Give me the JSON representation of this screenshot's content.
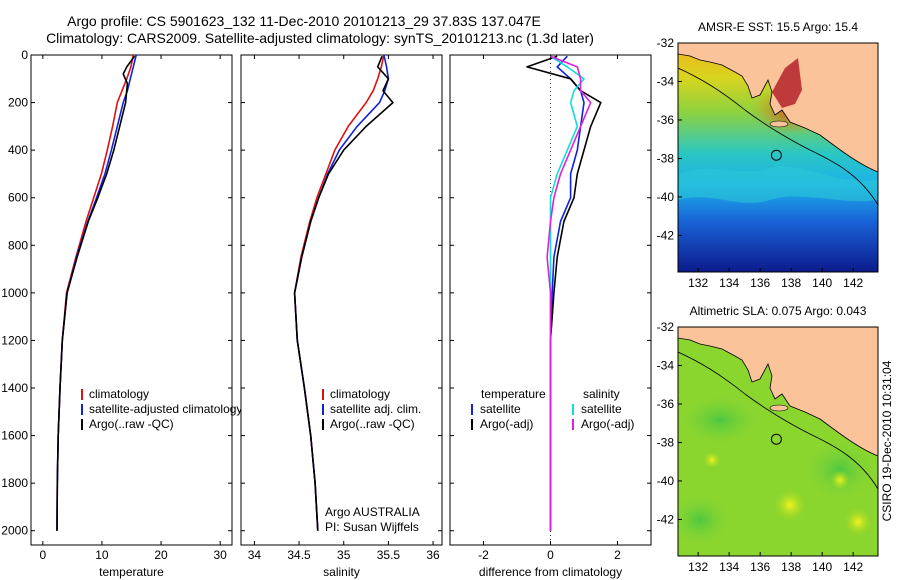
{
  "header": {
    "line1": "Argo profile: CS 5901623_132 11-Dec-2010 20101213_29 37.83S 137.047E",
    "line2": "Climatology: CARS2009. Satellite-adjusted climatology: synTS_20101213.nc (1.3d later)"
  },
  "footer": {
    "stamp": "CSIRO 19-Dec-2010 10:31:04"
  },
  "colors": {
    "red": "#dd1111",
    "blue": "#1122dd",
    "black": "#000000",
    "cyan": "#11dddd",
    "magenta": "#dd22dd",
    "land": "#fbc39a"
  },
  "chart_data": [
    {
      "type": "line",
      "xlabel": "temperature",
      "ylabel": "",
      "xlim": [
        -2,
        32
      ],
      "ylim": [
        2060,
        0
      ],
      "xticks": [
        0,
        10,
        20,
        30
      ],
      "xtick_labels": [
        "0",
        "10",
        "20",
        "30"
      ],
      "yticks": [
        0,
        200,
        400,
        600,
        800,
        1000,
        1200,
        1400,
        1600,
        1800,
        2000
      ],
      "ytick_labels": [
        "0",
        "200",
        "400",
        "600",
        "800",
        "1000",
        "1200",
        "1400",
        "1600",
        "1800",
        "2000"
      ],
      "legend": {
        "placement": "lower-right",
        "entries": [
          "climatology",
          "satellite-adjusted climatology",
          "Argo(..raw -QC)"
        ]
      },
      "series": [
        {
          "name": "climatology",
          "color": "red",
          "x": [
            15.3,
            14.9,
            14.2,
            13.4,
            12.6,
            11.8,
            10.9,
            9.9,
            8.6,
            7.3,
            5.6,
            4.0,
            3.3,
            2.9,
            2.6,
            2.45,
            2.4
          ],
          "y": [
            0,
            50,
            100,
            150,
            200,
            300,
            400,
            500,
            600,
            700,
            850,
            1000,
            1200,
            1400,
            1600,
            1800,
            2000
          ]
        },
        {
          "name": "satellite-adjusted climatology",
          "color": "blue",
          "x": [
            15.8,
            15.3,
            14.8,
            14.3,
            13.6,
            12.6,
            11.6,
            10.5,
            9.1,
            7.6,
            5.7,
            4.1,
            3.3,
            2.9,
            2.6,
            2.45,
            2.4
          ],
          "y": [
            0,
            50,
            100,
            150,
            200,
            300,
            400,
            500,
            600,
            700,
            850,
            1000,
            1200,
            1400,
            1600,
            1800,
            2000
          ]
        },
        {
          "name": "Argo(..raw -QC)",
          "color": "black",
          "x": [
            15.5,
            14.2,
            13.6,
            14.3,
            14.0,
            13.0,
            12.0,
            10.8,
            9.3,
            7.7,
            5.8,
            4.1,
            3.3,
            2.9,
            2.6,
            2.45,
            2.4
          ],
          "y": [
            5,
            50,
            80,
            120,
            200,
            300,
            400,
            500,
            600,
            700,
            850,
            1000,
            1200,
            1400,
            1600,
            1800,
            2000
          ]
        }
      ]
    },
    {
      "type": "line",
      "xlabel": "salinity",
      "ylabel": "",
      "xlim": [
        33.85,
        36.1
      ],
      "ylim": [
        2060,
        0
      ],
      "xticks": [
        34,
        34.5,
        35,
        35.5,
        36
      ],
      "xtick_labels": [
        "34",
        "34.5",
        "35",
        "35.5",
        "36"
      ],
      "legend": {
        "placement": "lower-right",
        "entries": [
          "climatology",
          "satellite adj. clim.",
          "Argo(..raw -QC)"
        ]
      },
      "annotations": [
        "Argo AUSTRALIA",
        "PI: Susan Wijffels"
      ],
      "series": [
        {
          "name": "climatology",
          "color": "red",
          "x": [
            35.45,
            35.42,
            35.38,
            35.33,
            35.25,
            35.05,
            34.9,
            34.8,
            34.7,
            34.62,
            34.52,
            34.45,
            34.48,
            34.56,
            34.63,
            34.68,
            34.71
          ],
          "y": [
            0,
            50,
            100,
            150,
            200,
            300,
            400,
            500,
            600,
            700,
            850,
            1000,
            1200,
            1400,
            1600,
            1800,
            2000
          ]
        },
        {
          "name": "satellite adj. clim.",
          "color": "blue",
          "x": [
            35.45,
            35.48,
            35.5,
            35.46,
            35.4,
            35.15,
            34.95,
            34.82,
            34.72,
            34.63,
            34.53,
            34.45,
            34.48,
            34.56,
            34.63,
            34.68,
            34.71
          ],
          "y": [
            0,
            50,
            100,
            150,
            200,
            300,
            400,
            500,
            600,
            700,
            850,
            1000,
            1200,
            1400,
            1600,
            1800,
            2000
          ]
        },
        {
          "name": "Argo(..raw -QC)",
          "color": "black",
          "x": [
            35.43,
            35.38,
            35.5,
            35.44,
            35.55,
            35.25,
            35.0,
            34.83,
            34.72,
            34.63,
            34.53,
            34.45,
            34.48,
            34.56,
            34.63,
            34.68,
            34.71
          ],
          "y": [
            5,
            50,
            100,
            150,
            200,
            300,
            400,
            500,
            600,
            700,
            850,
            1000,
            1200,
            1400,
            1600,
            1800,
            2000
          ]
        }
      ]
    },
    {
      "type": "line",
      "xlabel": "difference from climatology",
      "ylabel": "",
      "xlim": [
        -3,
        3
      ],
      "ylim": [
        2060,
        0
      ],
      "xticks": [
        -2,
        0,
        2
      ],
      "xtick_labels": [
        "-2",
        "0",
        "2"
      ],
      "legend": {
        "placement": "lower-right",
        "groups": [
          {
            "title": "temperature",
            "entries": [
              "satellite",
              "Argo(-adj)"
            ]
          },
          {
            "title": "salinity",
            "entries": [
              "satellite",
              "Argo(-adj)"
            ]
          }
        ]
      },
      "series": [
        {
          "name": "satellite",
          "group": "temperature",
          "color": "blue",
          "x": [
            0.5,
            0.2,
            0.6,
            0.9,
            1.0,
            0.9,
            0.8,
            0.6,
            0.6,
            0.3,
            0.1,
            0.05,
            0.0,
            0.0,
            0.0,
            0.0,
            0.0
          ],
          "y": [
            5,
            50,
            100,
            150,
            200,
            300,
            400,
            500,
            600,
            700,
            850,
            1000,
            1200,
            1400,
            1600,
            1800,
            2000
          ]
        },
        {
          "name": "Argo(-adj)",
          "group": "temperature",
          "color": "black",
          "x": [
            0.2,
            -0.7,
            0.6,
            0.9,
            1.5,
            1.2,
            1.0,
            0.8,
            0.7,
            0.4,
            0.2,
            0.1,
            0.0,
            0.0,
            0.0,
            0.0,
            0.0
          ],
          "y": [
            5,
            50,
            100,
            150,
            200,
            300,
            400,
            500,
            600,
            700,
            850,
            1000,
            1200,
            1400,
            1600,
            1800,
            2000
          ]
        },
        {
          "name": "satellite",
          "group": "salinity",
          "color": "cyan",
          "x": [
            0.0,
            0.5,
            1.0,
            0.7,
            0.6,
            0.8,
            0.5,
            0.2,
            0.0,
            0.0,
            0.0,
            0.0,
            0.0,
            0.0,
            0.0,
            0.0,
            0.0
          ],
          "y": [
            5,
            50,
            100,
            150,
            200,
            300,
            400,
            500,
            600,
            700,
            850,
            1000,
            1200,
            1400,
            1600,
            1800,
            2000
          ]
        },
        {
          "name": "Argo(-adj)",
          "group": "salinity",
          "color": "magenta",
          "x": [
            0.0,
            0.8,
            0.9,
            0.9,
            1.2,
            0.9,
            0.6,
            0.3,
            0.1,
            0.0,
            -0.1,
            0.0,
            0.0,
            0.0,
            0.0,
            0.0,
            0.0
          ],
          "y": [
            5,
            50,
            100,
            150,
            200,
            300,
            400,
            500,
            600,
            700,
            850,
            1000,
            1200,
            1400,
            1600,
            1800,
            2000
          ]
        }
      ]
    },
    {
      "type": "heatmap",
      "title": "AMSR-E SST: 15.5 Argo: 15.4",
      "xlim": [
        130.7,
        143.6
      ],
      "ylim": [
        -43.9,
        -32
      ],
      "xticks": [
        132,
        134,
        136,
        138,
        140,
        142
      ],
      "xtick_labels": [
        "132",
        "134",
        "136",
        "138",
        "140",
        "142"
      ],
      "yticks": [
        -32,
        -34,
        -36,
        -38,
        -40,
        -42
      ],
      "ytick_labels": [
        "-32",
        "-34",
        "-36",
        "-38",
        "-40",
        "-42"
      ],
      "marker": {
        "lon": 137.05,
        "lat": -37.83
      }
    },
    {
      "type": "heatmap",
      "title": "Altimetric SLA: 0.075 Argo: 0.043",
      "xlim": [
        130.7,
        143.6
      ],
      "ylim": [
        -43.9,
        -32
      ],
      "xticks": [
        132,
        134,
        136,
        138,
        140,
        142
      ],
      "xtick_labels": [
        "132",
        "134",
        "136",
        "138",
        "140",
        "142"
      ],
      "yticks": [
        -32,
        -34,
        -36,
        -38,
        -40,
        -42
      ],
      "ytick_labels": [
        "-32",
        "-34",
        "-36",
        "-38",
        "-40",
        "-42"
      ],
      "marker": {
        "lon": 137.05,
        "lat": -37.83
      }
    }
  ]
}
